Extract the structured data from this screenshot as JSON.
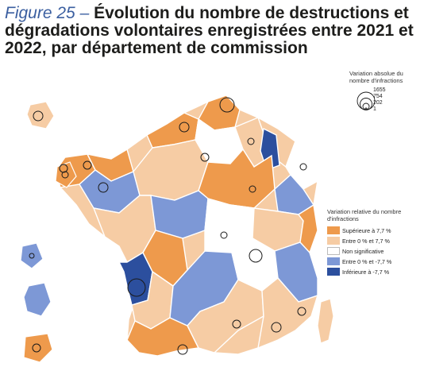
{
  "title": {
    "figure": "Figure 25",
    "dash": "–",
    "text": "Évolution du nombre de destructions et dégradations volontaires enregistrées entre 2021 et 2022, par département de commission"
  },
  "legend_size": {
    "title": "Variation absolue du nombre d'infractions",
    "values": [
      "1655",
      "754",
      "202",
      "1"
    ]
  },
  "legend_color": {
    "title": "Variation relative du nombre d'infractions",
    "items": [
      {
        "label": "Supérieure à 7,7 %",
        "color": "#ee9a4c"
      },
      {
        "label": "Entre 0 % et 7,7 %",
        "color": "#f6cca4"
      },
      {
        "label": "Non significative",
        "color": "#ffffff"
      },
      {
        "label": "Entre 0 % et -7,7 %",
        "color": "#7d98d6"
      },
      {
        "label": "Inférieure à -7,7 %",
        "color": "#2c4f9e"
      }
    ]
  }
}
